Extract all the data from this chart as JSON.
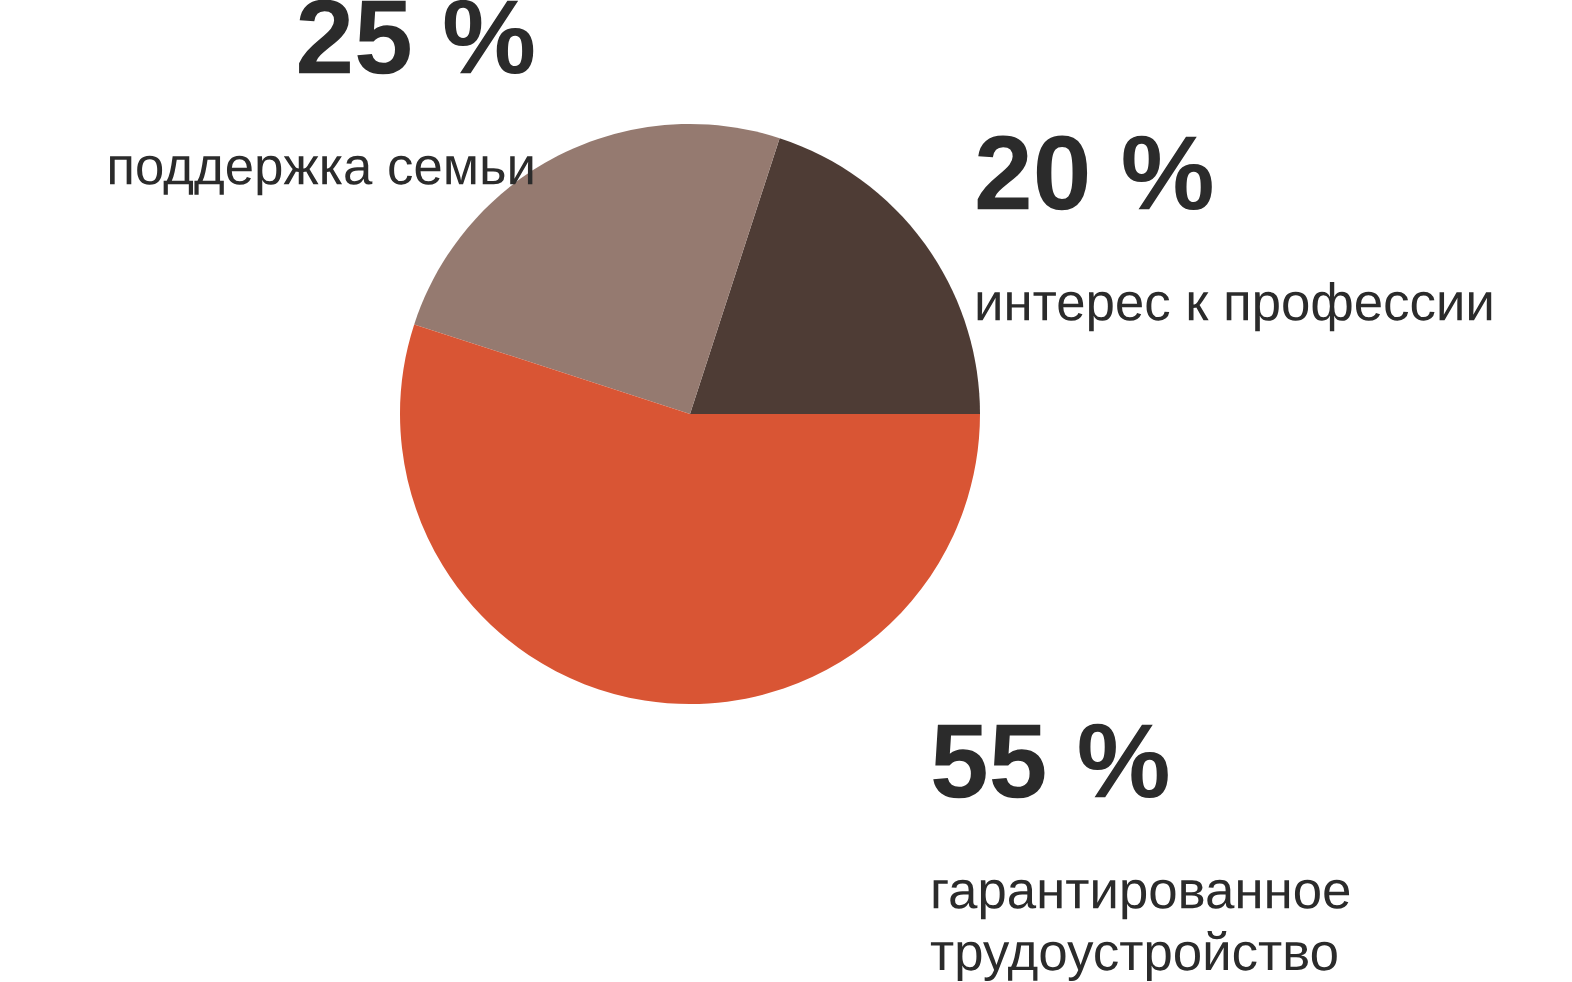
{
  "chart_data": {
    "type": "pie",
    "categories": [
      "интерес к профессии",
      "поддержка семьи",
      "гарантированное трудоустройство"
    ],
    "values": [
      20,
      25,
      55
    ],
    "value_labels": [
      "20 %",
      "25 %",
      "55 %"
    ],
    "colors": [
      "#4e3c35",
      "#957a70",
      "#d95534"
    ]
  }
}
